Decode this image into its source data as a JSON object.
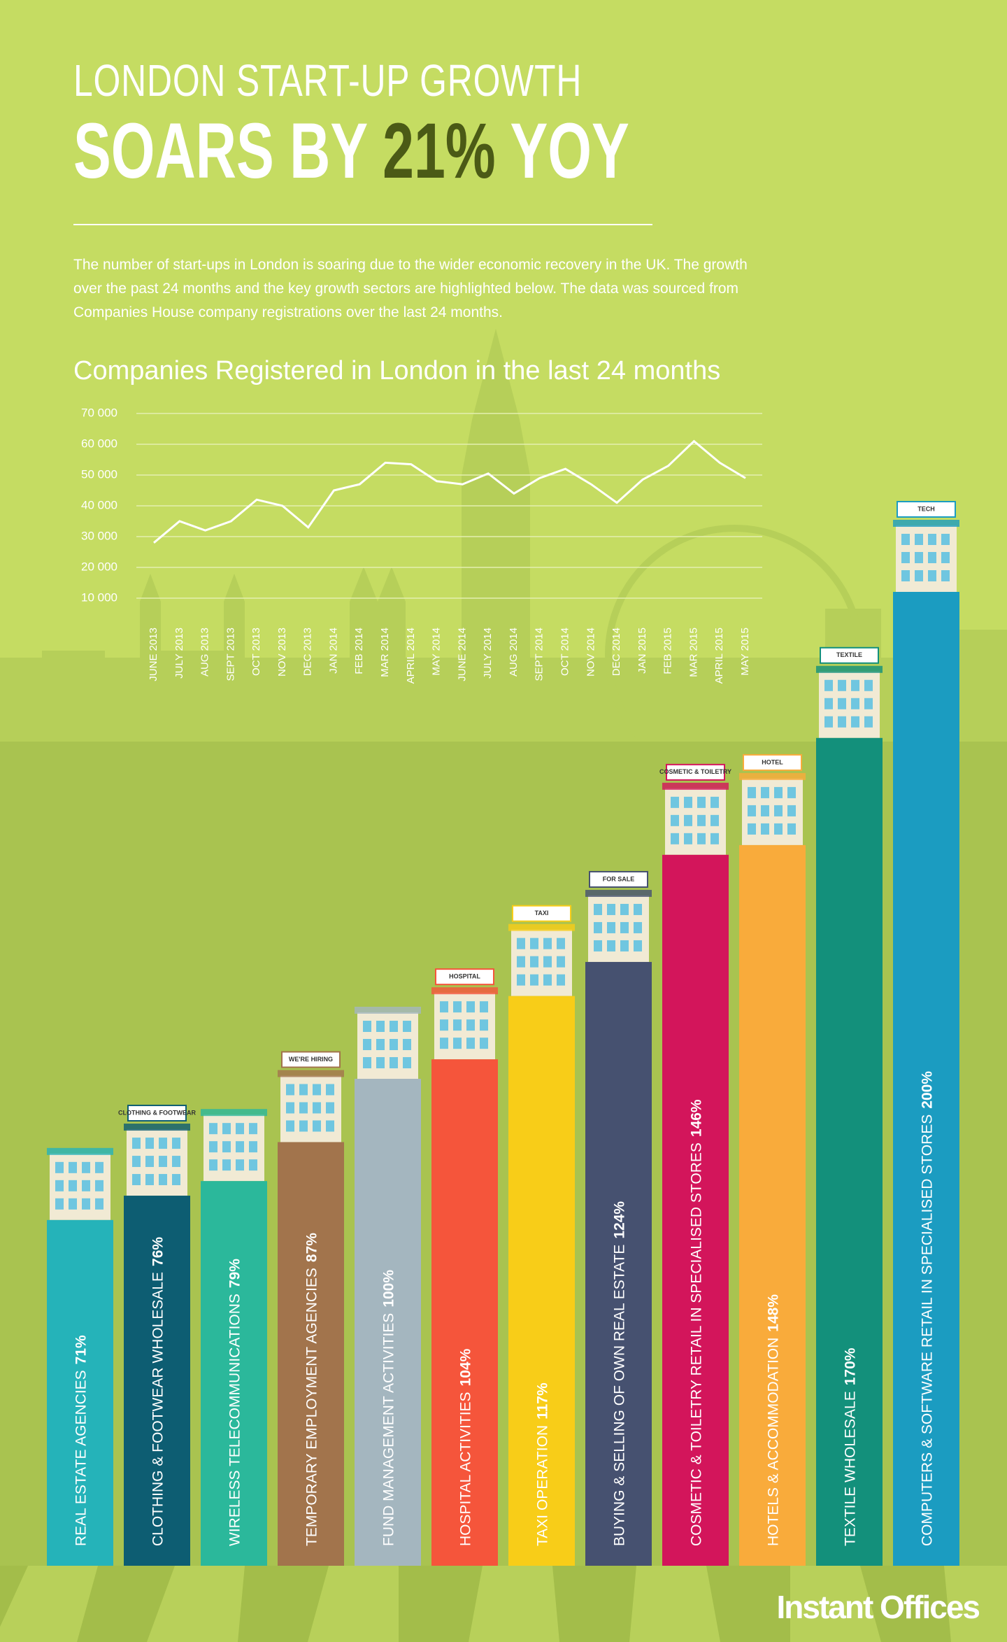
{
  "header": {
    "title_line1": "LONDON START-UP GROWTH",
    "title_line2": [
      "SOARS BY",
      "21%",
      "YOY"
    ],
    "description": [
      "The number of start-ups in London is soaring due to the wider economic recovery in the UK. The growth",
      "over the past 24 months and the key growth sectors are highlighted below. The data  was sourced from",
      "Companies House company registrations over the last 24 months."
    ]
  },
  "chart_data": [
    {
      "type": "line",
      "title": "Companies Registered in London in the last 24 months",
      "categories": [
        "JUNE 2013",
        "JULY 2013",
        "AUG 2013",
        "SEPT 2013",
        "OCT 2013",
        "NOV 2013",
        "DEC 2013",
        "JAN 2014",
        "FEB 2014",
        "MAR 2014",
        "APRIL 2014",
        "MAY 2014",
        "JUNE 2014",
        "JULY 2014",
        "AUG 2014",
        "SEPT 2014",
        "OCT 2014",
        "NOV 2014",
        "DEC 2014",
        "JAN 2015",
        "FEB 2015",
        "MAR 2015",
        "APRIL 2015",
        "MAY 2015"
      ],
      "values": [
        28000,
        35000,
        32000,
        35000,
        42000,
        40000,
        33000,
        45000,
        47000,
        54000,
        53500,
        48000,
        47000,
        50500,
        44000,
        49000,
        52000,
        47000,
        41000,
        48500,
        53000,
        61000,
        54000,
        49000
      ],
      "color": "#ffffff",
      "ylim": [
        0,
        70000
      ],
      "yticks": [
        {
          "value": 10000,
          "label": "10 000"
        },
        {
          "value": 20000,
          "label": "20 000"
        },
        {
          "value": 30000,
          "label": "30 000"
        },
        {
          "value": 40000,
          "label": "40 000"
        },
        {
          "value": 50000,
          "label": "50 000"
        },
        {
          "value": 60000,
          "label": "60 000"
        },
        {
          "value": 70000,
          "label": "70 000"
        }
      ],
      "grid": true
    },
    {
      "type": "bar",
      "categories": [
        "REAL ESTATE AGENCIES",
        "CLOTHING & FOOTWEAR WHOLESALE",
        "WIRELESS TELECOMMUNICATIONS",
        "TEMPORARY EMPLOYMENT AGENCIES",
        "FUND MANAGEMENT ACTIVITIES",
        "HOSPITAL ACTIVITIES",
        "TAXI OPERATION",
        "BUYING & SELLING OF OWN REAL ESTATE",
        "COSMETIC & TOILETRY RETAIL IN SPECIALISED STORES",
        "HOTELS & ACCOMMODATION",
        "TEXTILE WHOLESALE",
        "COMPUTERS & SOFTWARE RETAIL IN SPECIALISED STORES"
      ],
      "values": [
        71,
        76,
        79,
        87,
        100,
        104,
        117,
        124,
        146,
        148,
        170,
        200
      ],
      "value_labels": [
        "71%",
        "76%",
        "79%",
        "87%",
        "100%",
        "104%",
        "117%",
        "124%",
        "146%",
        "148%",
        "170%",
        "200%"
      ],
      "colors": [
        "#25b3b9",
        "#0d5d72",
        "#2bb89b",
        "#a2744c",
        "#a4b6bf",
        "#f5553b",
        "#f8cd18",
        "#465170",
        "#d3155b",
        "#f9ab3b",
        "#13907b",
        "#1b9cc1"
      ],
      "ylim": [
        0,
        200
      ],
      "signs": [
        null,
        "CLOTHING & FOOTWEAR",
        null,
        "WE'RE HIRING",
        null,
        "HOSPITAL",
        "TAXI",
        "FOR SALE",
        "COSMETIC & TOILETRY",
        "HOTEL",
        "TEXTILE",
        "TECH"
      ]
    }
  ],
  "footer": {
    "brand": "Instant Offices"
  }
}
